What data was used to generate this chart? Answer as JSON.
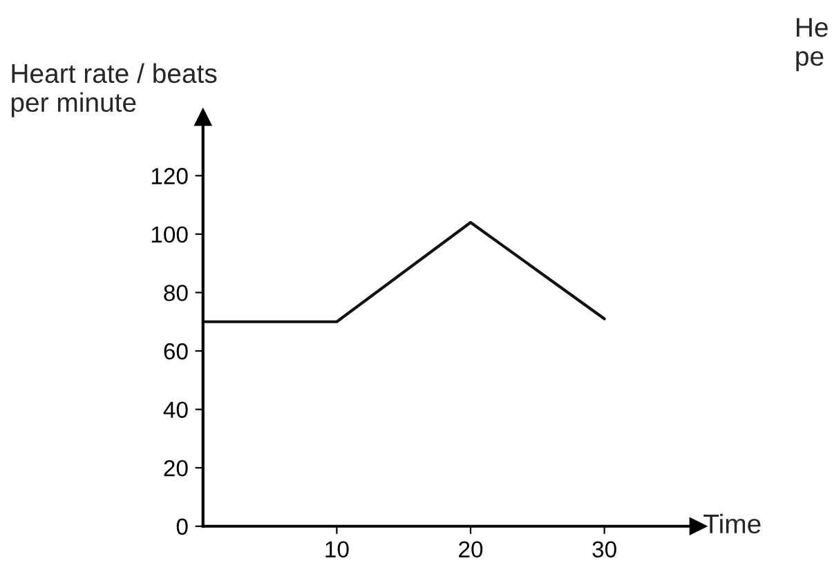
{
  "chart_data": {
    "type": "line",
    "xlabel": "Time",
    "ylabel": "Heart rate / beats\nper minute",
    "x": [
      0,
      10,
      20,
      30
    ],
    "series": [
      {
        "color": "#111111",
        "values": [
          70,
          70,
          104,
          71
        ]
      }
    ],
    "xlim": [
      0,
      37
    ],
    "xticks": [
      10,
      20,
      30
    ],
    "ylim": [
      0,
      140
    ],
    "yticks": [
      0,
      20,
      40,
      60,
      80,
      100,
      120
    ],
    "grid": false,
    "legend": false,
    "marker": "none",
    "line_style": "solid",
    "annotations": [
      "He\npe"
    ]
  }
}
